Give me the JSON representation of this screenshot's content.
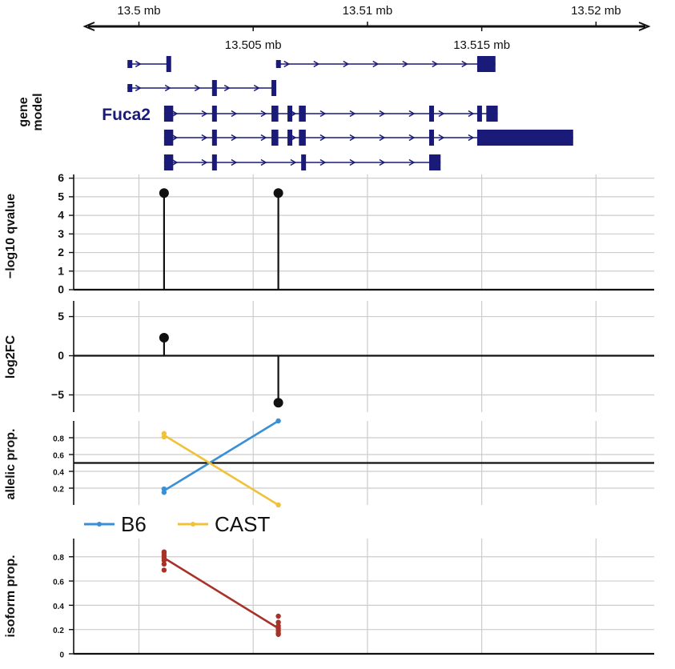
{
  "colors": {
    "gene": "#1a1a78",
    "lollipop": "#111111",
    "grid": "#cccccc",
    "b6": "#3b8fd4",
    "cast": "#f0c23c",
    "isoform": "#a83228"
  },
  "chart_data": [
    {
      "panel": "coordinate-axis",
      "type": "axis",
      "xlim": [
        13.4976,
        13.5223
      ],
      "top_ticks": [
        13.5,
        13.51,
        13.52
      ],
      "top_tick_labels": [
        "13.5 mb",
        "13.51 mb",
        "13.52 mb"
      ],
      "bottom_ticks": [
        13.505,
        13.515
      ],
      "bottom_tick_labels": [
        "13.505 mb",
        "13.515 mb"
      ]
    },
    {
      "panel": "gene-model",
      "type": "gene_model",
      "ylabel": "gene\nmodel",
      "gene_name": "Fuca2",
      "strand": "+",
      "transcripts": [
        {
          "exons": [
            [
              13.5012,
              13.5013
            ]
          ],
          "intron": [
            13.4995,
            13.5012
          ],
          "segments": [
            {
              "exons": [
                [
                  13.4995,
                  13.4996
                ],
                [
                  13.5012,
                  13.5013
                ]
              ]
            },
            {
              "exons": [
                [
                  13.506,
                  13.5061
                ],
                [
                  13.5148,
                  13.5156
                ]
              ]
            }
          ]
        },
        {
          "exons": [
            [
              13.4995,
              13.4996
            ],
            [
              13.5032,
              13.5034
            ],
            [
              13.5058,
              13.506
            ]
          ]
        },
        {
          "exons": [
            [
              13.5011,
              13.5015
            ],
            [
              13.5032,
              13.5034
            ],
            [
              13.5058,
              13.5061
            ],
            [
              13.5065,
              13.5067
            ],
            [
              13.507,
              13.5073
            ],
            [
              13.5127,
              13.5129
            ],
            [
              13.5148,
              13.515
            ],
            [
              13.5152,
              13.5157
            ]
          ]
        },
        {
          "exons": [
            [
              13.5011,
              13.5015
            ],
            [
              13.5032,
              13.5034
            ],
            [
              13.5058,
              13.5061
            ],
            [
              13.5065,
              13.5067
            ],
            [
              13.507,
              13.5073
            ],
            [
              13.5127,
              13.5129
            ],
            [
              13.5148,
              13.5151
            ],
            [
              13.5151,
              13.519
            ]
          ]
        },
        {
          "exons": [
            [
              13.5011,
              13.5015
            ],
            [
              13.5032,
              13.5034
            ],
            [
              13.5071,
              13.5073
            ],
            [
              13.5127,
              13.5132
            ]
          ]
        }
      ]
    },
    {
      "panel": "qvalue",
      "type": "lollipop",
      "ylabel": "−log10 qvalue",
      "ylim": [
        0,
        6.2
      ],
      "yticks": [
        0,
        1,
        2,
        3,
        4,
        5,
        6
      ],
      "ytick_labels": [
        "0",
        "1",
        "2",
        "3",
        "4",
        "5",
        "6"
      ],
      "x": [
        13.5011,
        13.5061
      ],
      "y": [
        5.2,
        5.2
      ],
      "grid": true
    },
    {
      "panel": "log2fc",
      "type": "lollipop",
      "ylabel": "log2FC",
      "ylim": [
        -7.2,
        7.0
      ],
      "yticks": [
        -5,
        0,
        5
      ],
      "ytick_labels": [
        "−5",
        "0",
        "5"
      ],
      "baseline": 0,
      "x": [
        13.5011,
        13.5061
      ],
      "y": [
        2.3,
        -6.0
      ],
      "grid": true
    },
    {
      "panel": "allelic",
      "type": "line",
      "ylabel": "allelic prop.",
      "ylim": [
        0,
        1.0
      ],
      "yticks": [
        0.2,
        0.4,
        0.6,
        0.8
      ],
      "ytick_labels": [
        "0.2",
        "0.4",
        "0.6",
        "0.8"
      ],
      "reference_line": 0.5,
      "grid": true,
      "series": [
        {
          "name": "B6",
          "color_key": "b6",
          "x": [
            13.5011,
            13.5061
          ],
          "y": [
            0.17,
            1.0
          ],
          "points": [
            [
              13.5011,
              0.15
            ],
            [
              13.5011,
              0.19
            ],
            [
              13.5061,
              1.0
            ]
          ]
        },
        {
          "name": "CAST",
          "color_key": "cast",
          "x": [
            13.5011,
            13.5061
          ],
          "y": [
            0.83,
            0.0
          ],
          "points": [
            [
              13.5011,
              0.81
            ],
            [
              13.5011,
              0.85
            ],
            [
              13.5061,
              0.0
            ]
          ]
        }
      ],
      "legend": {
        "placement": "bottom-left",
        "entries": [
          "B6",
          "CAST"
        ]
      }
    },
    {
      "panel": "isoform",
      "type": "line",
      "ylabel": "isoform prop.",
      "ylim": [
        0,
        0.95
      ],
      "yticks": [
        0,
        0.2,
        0.4,
        0.6,
        0.8
      ],
      "ytick_labels": [
        "0",
        "0.2",
        "0.4",
        "0.6",
        "0.8"
      ],
      "grid": true,
      "series": [
        {
          "name": "",
          "color_key": "isoform",
          "x": [
            13.5011,
            13.5061
          ],
          "y": [
            0.79,
            0.21
          ],
          "points": [
            [
              13.5011,
              0.69
            ],
            [
              13.5011,
              0.74
            ],
            [
              13.5011,
              0.77
            ],
            [
              13.5011,
              0.79
            ],
            [
              13.5011,
              0.81
            ],
            [
              13.5011,
              0.83
            ],
            [
              13.5011,
              0.84
            ],
            [
              13.5061,
              0.16
            ],
            [
              13.5061,
              0.17
            ],
            [
              13.5061,
              0.19
            ],
            [
              13.5061,
              0.21
            ],
            [
              13.5061,
              0.23
            ],
            [
              13.5061,
              0.26
            ],
            [
              13.5061,
              0.31
            ]
          ]
        }
      ]
    }
  ]
}
